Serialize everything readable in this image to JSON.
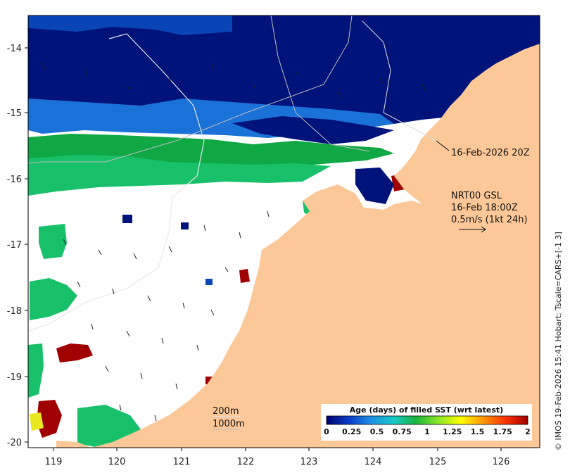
{
  "map": {
    "x_axis": {
      "ticks": [
        "119",
        "120",
        "121",
        "122",
        "123",
        "124",
        "125",
        "126"
      ]
    },
    "y_axis": {
      "ticks": [
        "-14",
        "-15",
        "-16",
        "-17",
        "-18",
        "-19",
        "-20"
      ]
    },
    "colors": {
      "land": "#fcc898",
      "nodata": "#ffffff",
      "age_deep": "#00137a",
      "age_blue": "#0a45b8",
      "age_mid": "#1a72d8",
      "age_green": "#10a845",
      "age_lightgreen": "#18c06a",
      "age_red": "#a00000"
    }
  },
  "annotations": {
    "timestamp": "16-Feb-2026 20Z",
    "model": "NRT00 GSL",
    "model_time": "16-Feb 18:00Z",
    "scale": "0.5m/s (1kt 24h)",
    "contour_200": "200m",
    "contour_1000": "1000m"
  },
  "colorbar": {
    "title": "Age (days) of filled SST (wrt latest)",
    "ticks": [
      "0",
      "0.25",
      "0.5",
      "0.75",
      "1",
      "1.25",
      "1.5",
      "1.75",
      "2"
    ],
    "stops": [
      "#00006e",
      "#0a3cc8",
      "#1e90e6",
      "#16c8c8",
      "#18b43c",
      "#8ce628",
      "#ffff00",
      "#ff9600",
      "#ff3200",
      "#a00000"
    ]
  },
  "credit": "© IMOS 19-Feb-2026 15:41 Hobart; Tscale=CARS+[-1 3]"
}
